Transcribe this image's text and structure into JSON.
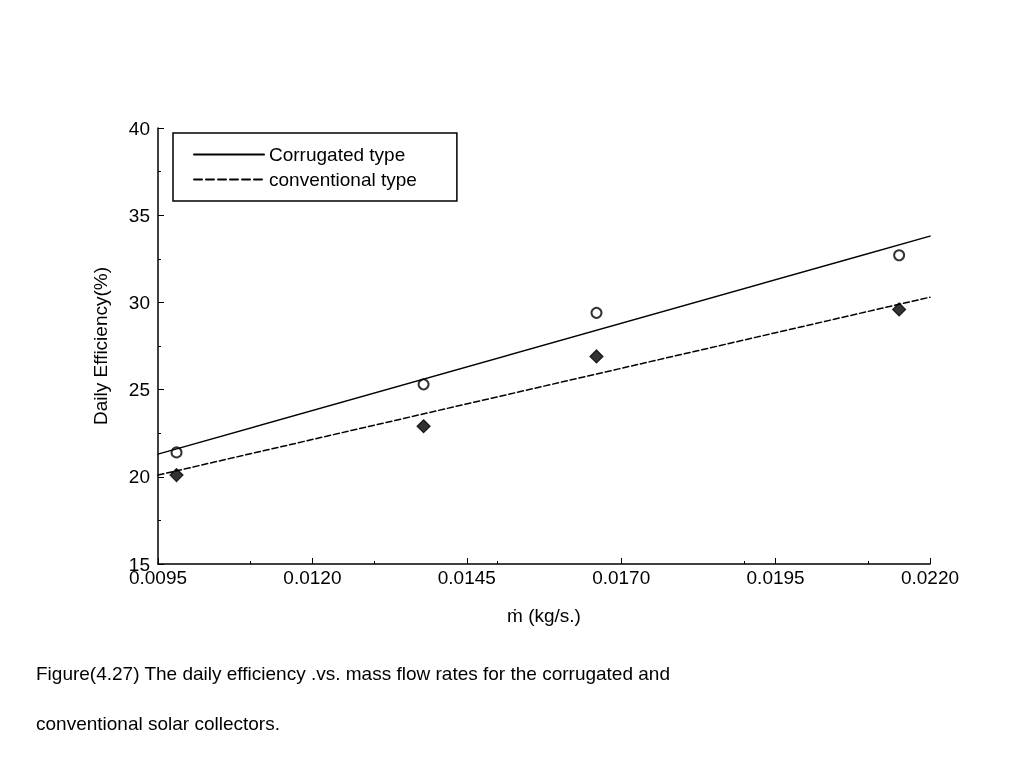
{
  "chart_data": {
    "type": "scatter",
    "xlabel": "ṁ (kg/s.)",
    "ylabel": "Daily Efficiency(%)",
    "annotations": [
      "Figure(4.27) The daily efficiency .vs. mass flow rates for the corrugated and conventional solar collectors."
    ],
    "xlim": [
      0.0095,
      0.022
    ],
    "xticks": [
      {
        "value": 0.0095,
        "label": "0.0095"
      },
      {
        "value": 0.012,
        "label": "0.0120"
      },
      {
        "value": 0.0145,
        "label": "0.0145"
      },
      {
        "value": 0.017,
        "label": "0.0170"
      },
      {
        "value": 0.0195,
        "label": "0.0195"
      },
      {
        "value": 0.022,
        "label": "0.0220"
      }
    ],
    "ylim": [
      15,
      40
    ],
    "yticks": [
      15,
      20,
      25,
      30,
      35,
      40
    ],
    "grid": false,
    "legend": "top left",
    "series": [
      {
        "color": "#000000",
        "marker": "circle",
        "x": [
          0.0098,
          0.0138,
          0.0166,
          0.0215
        ],
        "values": [
          21.4,
          25.3,
          29.4,
          32.7
        ]
      },
      {
        "color": "#000000",
        "marker": "diamond",
        "x": [
          0.0098,
          0.0138,
          0.0166,
          0.0215
        ],
        "values": [
          20.1,
          22.9,
          26.9,
          29.6
        ]
      },
      {
        "type": "line",
        "name": "Corrugated type",
        "color": "#000000",
        "line_style": "solid",
        "marker": "none",
        "x": [
          0.0095,
          0.022
        ],
        "values": [
          21.3,
          33.8
        ]
      },
      {
        "type": "line",
        "name": "conventional type",
        "color": "#000000",
        "line_style": "dashed",
        "marker": "none",
        "x": [
          0.0095,
          0.022
        ],
        "values": [
          20.1,
          30.3
        ]
      }
    ]
  }
}
